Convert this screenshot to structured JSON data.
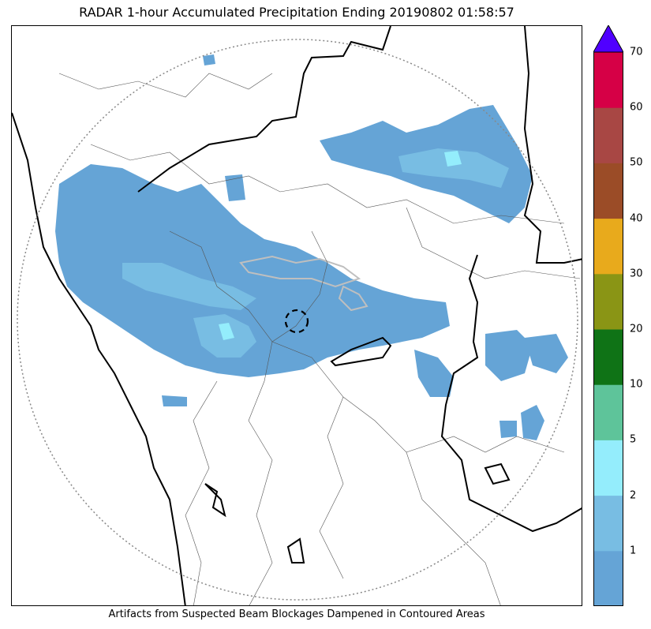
{
  "title": "RADAR 1-hour Accumulated Precipitation Ending 20190802 01:58:57",
  "caption": "Artifacts from Suspected Beam Blockages Dampened in Contoured Areas",
  "colorbar": {
    "levels": [
      {
        "label": "",
        "color": "#65a4d6"
      },
      {
        "label": "1",
        "color": "#78bde3"
      },
      {
        "label": "2",
        "color": "#94edfc"
      },
      {
        "label": "5",
        "color": "#5ec49a"
      },
      {
        "label": "10",
        "color": "#0f7316"
      },
      {
        "label": "20",
        "color": "#8a9515"
      },
      {
        "label": "30",
        "color": "#e8aa1c"
      },
      {
        "label": "40",
        "color": "#9b4c27"
      },
      {
        "label": "50",
        "color": "#a84744"
      },
      {
        "label": "60",
        "color": "#d60046"
      }
    ],
    "top_label": "70",
    "extend_color": "#5000ff"
  },
  "map": {
    "precip_color": "#65a4d6",
    "light_color": "#78bde3",
    "cyan_color": "#94edfc",
    "blockage_color": "#bfbfbf"
  }
}
